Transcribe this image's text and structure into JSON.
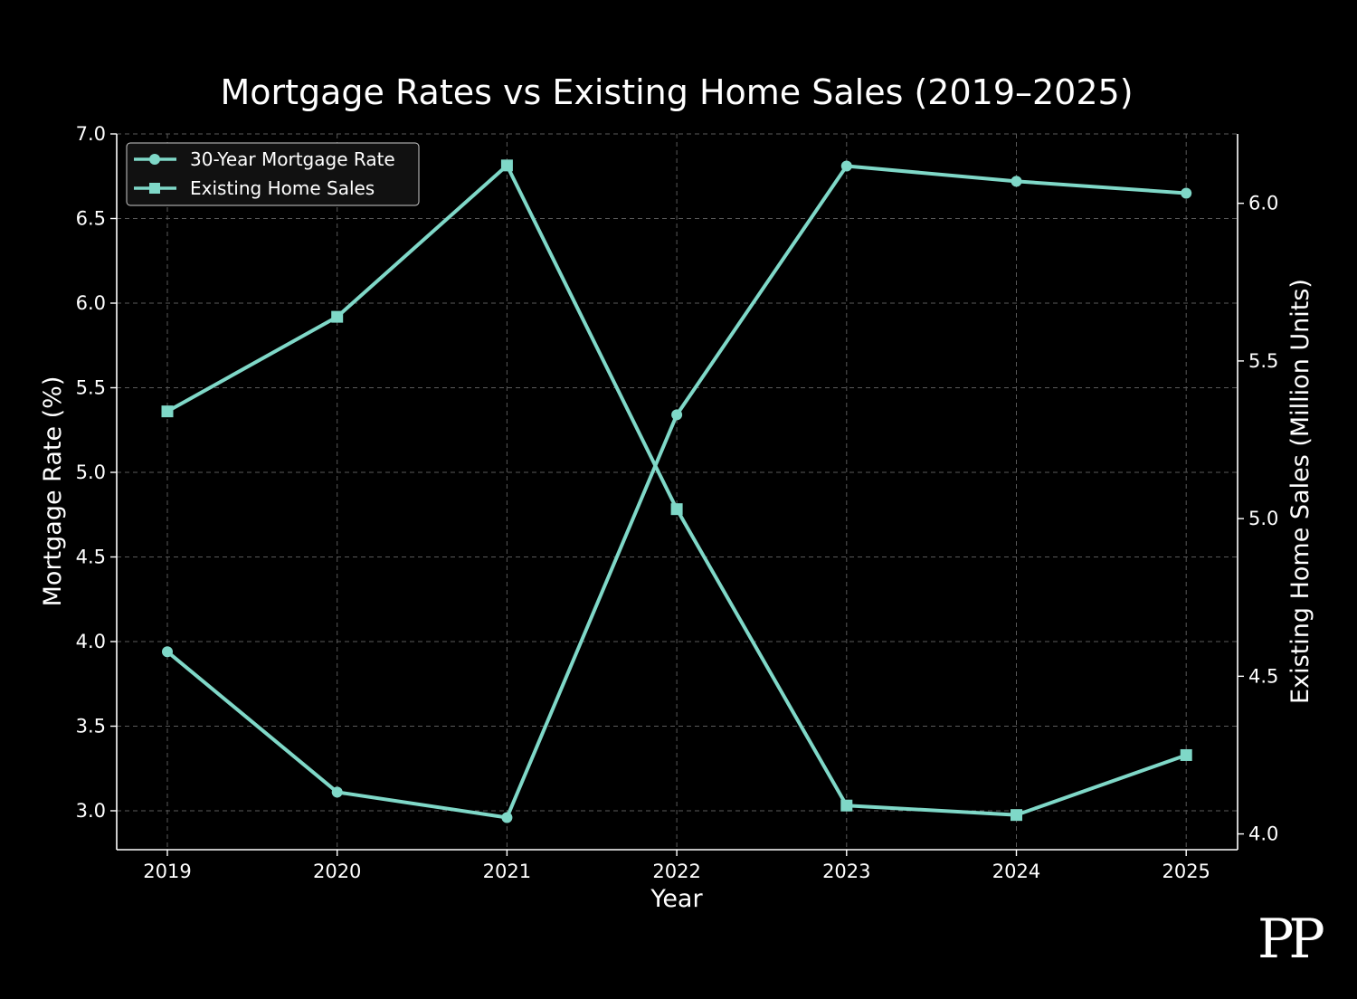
{
  "chart_data": {
    "type": "line",
    "title": "Mortgage Rates vs Existing Home Sales (2019–2025)",
    "xlabel": "Year",
    "ylabel": "Mortgage Rate (%)",
    "y2label": "Existing Home Sales (Million Units)",
    "categories": [
      "2019",
      "2020",
      "2021",
      "2022",
      "2023",
      "2024",
      "2025"
    ],
    "ylim": [
      2.77,
      7.0
    ],
    "y2lim": [
      3.95,
      6.22
    ],
    "yticks": [
      "3.0",
      "3.5",
      "4.0",
      "4.5",
      "5.0",
      "5.5",
      "6.0",
      "6.5",
      "7.0"
    ],
    "y2ticks": [
      "4.0",
      "4.5",
      "5.0",
      "5.5",
      "6.0"
    ],
    "grid": true,
    "legend_position": "top-left",
    "series": [
      {
        "name": "30-Year Mortgage Rate",
        "axis": "left",
        "marker": "circle",
        "color": "#7fd8c8",
        "values": [
          3.94,
          3.11,
          2.96,
          5.34,
          6.81,
          6.72,
          6.65
        ]
      },
      {
        "name": "Existing Home Sales",
        "axis": "right",
        "marker": "square",
        "color": "#7fd8c8",
        "values": [
          5.34,
          5.64,
          6.12,
          5.03,
          4.09,
          4.06,
          4.25
        ]
      }
    ]
  },
  "watermark": "PP",
  "colors": {
    "background": "#000000",
    "line": "#7fd8c8",
    "text": "#ffffff"
  }
}
